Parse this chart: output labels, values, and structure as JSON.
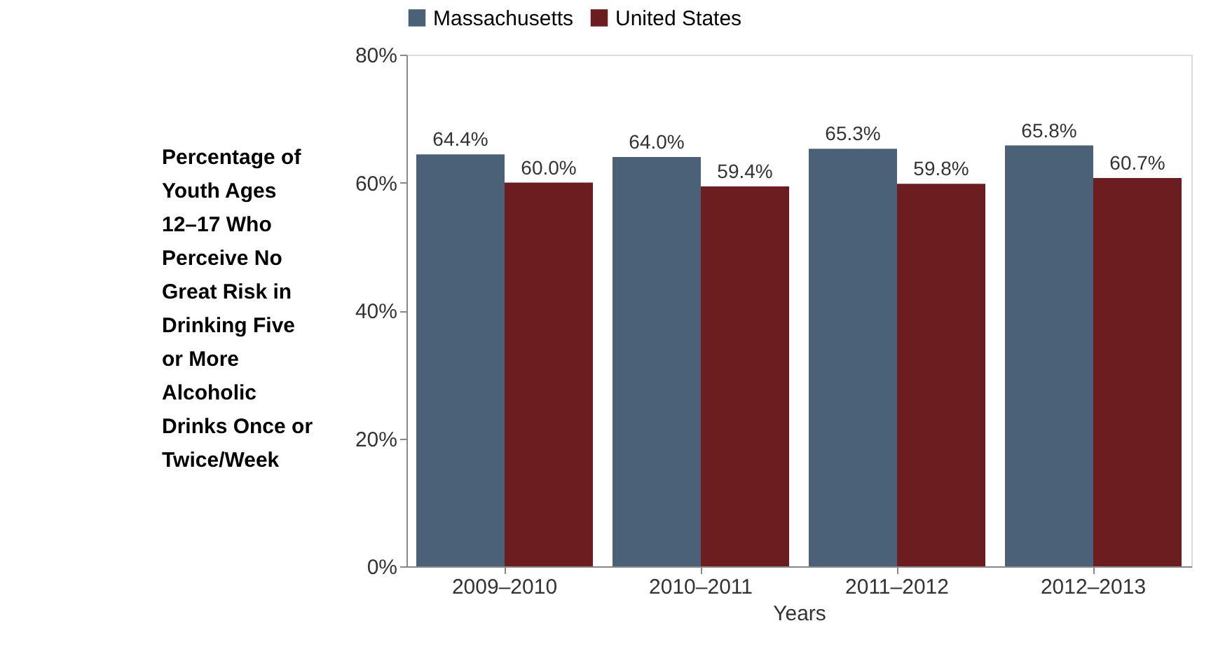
{
  "chart_data": {
    "type": "bar",
    "categories": [
      "2009–2010",
      "2010–2011",
      "2011–2012",
      "2012–2013"
    ],
    "series": [
      {
        "name": "Massachusetts",
        "color": "#4a6178",
        "values": [
          64.4,
          64.0,
          65.3,
          65.8
        ],
        "value_labels": [
          "64.4%",
          "64.0%",
          "65.3%",
          "65.8%"
        ]
      },
      {
        "name": "United States",
        "color": "#6b1d1f",
        "values": [
          60.0,
          59.4,
          59.8,
          60.7
        ],
        "value_labels": [
          "60.0%",
          "59.4%",
          "59.8%",
          "60.7%"
        ]
      }
    ],
    "xlabel": "Years",
    "ylabel": "Percentage of Youth Ages 12–17 Who Perceive No Great Risk in Drinking Five or More Alcoholic Drinks Once or Twice/Week",
    "ylim": [
      0,
      80
    ],
    "yticks": [
      {
        "value": 0,
        "label": "0%"
      },
      {
        "value": 20,
        "label": "20%"
      },
      {
        "value": 40,
        "label": "40%"
      },
      {
        "value": 60,
        "label": "60%"
      },
      {
        "value": 80,
        "label": "80%"
      }
    ],
    "legend": "top",
    "grid": false
  }
}
